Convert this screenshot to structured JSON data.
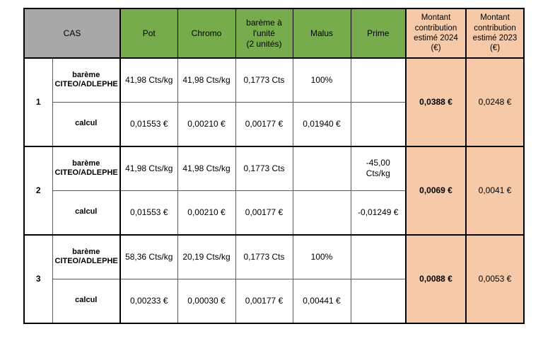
{
  "colors": {
    "header_gray": "#a8a8a8",
    "header_green": "#76ac4b",
    "amount_peach": "#f6caa8",
    "thick_border": "#000000",
    "thin_border": "#5a5a5a"
  },
  "header": {
    "cas": "CAS",
    "pot": "Pot",
    "chromo": "Chromo",
    "unit": "barème à\nl'unité\n(2 unités)",
    "malus": "Malus",
    "prime": "Prime",
    "amount_2024": "Montant\ncontribution\nestimé 2024\n(€)",
    "amount_2023": "Montant\ncontribution\nestimé 2023\n(€)"
  },
  "row_labels": {
    "bareme": "barème\nCITEO/ADLEPHE",
    "calcul": "calcul"
  },
  "cases": [
    {
      "num": "1",
      "bareme": {
        "pot": "41,98 Cts/kg",
        "chromo": "41,98 Cts/kg",
        "unit": "0,1773 Cts",
        "malus": "100%",
        "prime": ""
      },
      "calcul": {
        "pot": "0,01553 €",
        "chromo": "0,00210 €",
        "unit": "0,00177 €",
        "malus": "0,01940 €",
        "prime": ""
      },
      "amount_2024": "0,0388 €",
      "amount_2023": "0,0248 €"
    },
    {
      "num": "2",
      "bareme": {
        "pot": "41,98 Cts/kg",
        "chromo": "41,98 Cts/kg",
        "unit": "0,1773 Cts",
        "malus": "",
        "prime": "-45,00\nCts/kg"
      },
      "calcul": {
        "pot": "0,01553 €",
        "chromo": "0,00210 €",
        "unit": "0,00177 €",
        "malus": "",
        "prime": "-0,01249 €"
      },
      "amount_2024": "0,0069 €",
      "amount_2023": "0,0041 €"
    },
    {
      "num": "3",
      "bareme": {
        "pot": "58,36 Cts/kg",
        "chromo": "20,19 Cts/kg",
        "unit": "0,1773 Cts",
        "malus": "100%",
        "prime": ""
      },
      "calcul": {
        "pot": "0,00233 €",
        "chromo": "0,00030 €",
        "unit": "0,00177 €",
        "malus": "0,00441 €",
        "prime": ""
      },
      "amount_2024": "0,0088 €",
      "amount_2023": "0,0053 €"
    }
  ]
}
